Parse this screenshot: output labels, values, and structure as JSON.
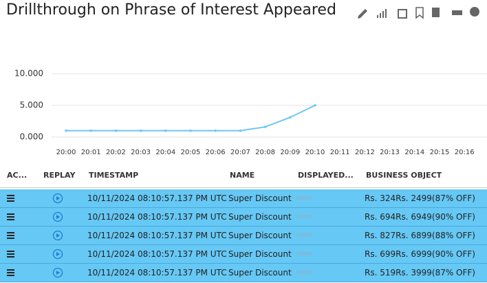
{
  "header": {
    "title": "Drillthrough on Phrase of Interest Appeared"
  },
  "chart_data": {
    "type": "line",
    "categories": [
      "20:00",
      "20:01",
      "20:02",
      "20:03",
      "20:04",
      "20:05",
      "20:06",
      "20:07",
      "20:08",
      "20:09",
      "20:10",
      "20:11",
      "20:12",
      "20:13",
      "20:14",
      "20:15",
      "20:16"
    ],
    "series": [
      {
        "color": "#6ec6f5",
        "values": [
          1,
          1,
          1,
          1,
          1,
          1,
          1,
          1,
          1.6,
          3.1,
          5,
          null,
          null,
          null,
          null,
          null,
          null
        ]
      }
    ],
    "ylim": [
      0,
      12
    ],
    "yticks": [
      {
        "value": 0,
        "label": "0.000"
      },
      {
        "value": 5,
        "label": "5.000"
      },
      {
        "value": 10,
        "label": "10.000"
      }
    ],
    "grid": true
  },
  "table": {
    "columns": [
      "AC...",
      "REPLAY",
      "TIMESTAMP",
      "NAME",
      "DISPLAYED...",
      "BUSINESS OBJECT"
    ],
    "rows": [
      [
        "10/11/2024 08:10:57.137 PM UTC",
        "Super Discount",
        "none",
        "Rs. 324Rs. 2499(87% OFF)"
      ],
      [
        "10/11/2024 08:10:57.137 PM UTC",
        "Super Discount",
        "none",
        "Rs. 694Rs. 6949(90% OFF)"
      ],
      [
        "10/11/2024 08:10:57.137 PM UTC",
        "Super Discount",
        "none",
        "Rs. 827Rs. 6899(88% OFF)"
      ],
      [
        "10/11/2024 08:10:57.137 PM UTC",
        "Super Discount",
        "none",
        "Rs. 699Rs. 6999(90% OFF)"
      ],
      [
        "10/11/2024 08:10:57.137 PM UTC",
        "Super Discount",
        "none",
        "Rs. 519Rs. 3999(87% OFF)"
      ]
    ]
  }
}
